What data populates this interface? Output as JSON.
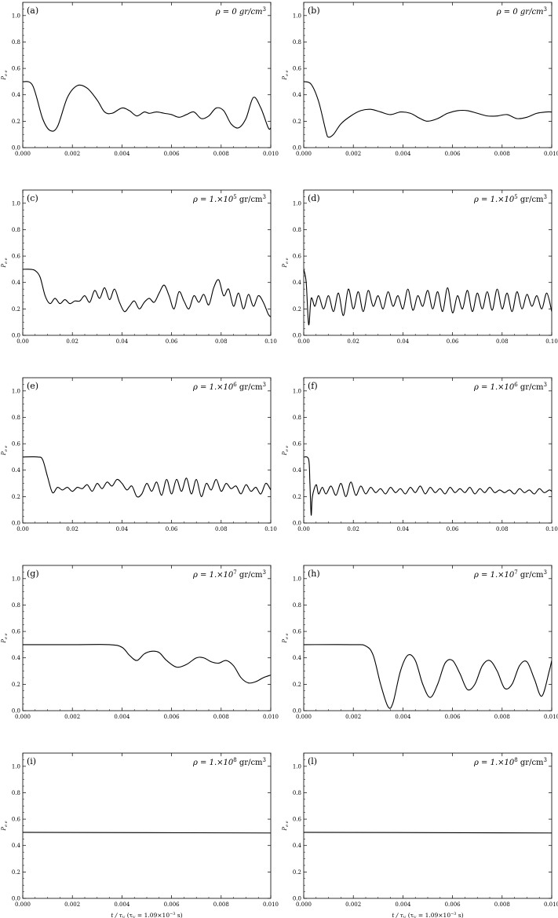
{
  "figure": {
    "x_axis_label": "t / τ",
    "x_axis_label_sub": "V",
    "x_axis_label_note": "(τ",
    "x_axis_label_note_sub": "V",
    "x_axis_label_note_val": " = 1.09×10",
    "x_axis_label_note_exp": "−3",
    "x_axis_label_note_end": " s)",
    "y_axis_label": "P",
    "y_axis_label_sub": "e e"
  },
  "chart_data": [
    {
      "id": "a",
      "type": "line",
      "label": "(a)",
      "rho_text": "ρ = 0 gr/cm",
      "rho_exp": "3",
      "xlim": [
        0,
        0.01
      ],
      "ylim": [
        0,
        1.1
      ],
      "xticks": [
        "0.000",
        "0.002",
        "0.004",
        "0.006",
        "0.008",
        "0.010"
      ],
      "yticks": [
        "0.0",
        "0.2",
        "0.4",
        "0.6",
        "0.8",
        "1.0"
      ],
      "x": [
        0,
        0.0004,
        0.0008,
        0.0011,
        0.0014,
        0.0018,
        0.0022,
        0.0026,
        0.003,
        0.0033,
        0.0036,
        0.004,
        0.0043,
        0.0046,
        0.0049,
        0.0051,
        0.0054,
        0.0057,
        0.006,
        0.0063,
        0.0066,
        0.0069,
        0.0072,
        0.0075,
        0.0078,
        0.0081,
        0.0084,
        0.0087,
        0.009,
        0.0093,
        0.0096,
        0.0099,
        0.01
      ],
      "y": [
        0.5,
        0.47,
        0.22,
        0.13,
        0.16,
        0.38,
        0.47,
        0.45,
        0.36,
        0.27,
        0.26,
        0.3,
        0.28,
        0.24,
        0.27,
        0.26,
        0.27,
        0.26,
        0.25,
        0.23,
        0.25,
        0.27,
        0.22,
        0.24,
        0.3,
        0.28,
        0.18,
        0.15,
        0.22,
        0.38,
        0.3,
        0.15,
        0.15
      ]
    },
    {
      "id": "b",
      "type": "line",
      "label": "(b)",
      "rho_text": "ρ = 0 gr/cm",
      "rho_exp": "3",
      "xlim": [
        0,
        0.01
      ],
      "ylim": [
        0,
        1.1
      ],
      "xticks": [
        "0.000",
        "0.002",
        "0.004",
        "0.006",
        "0.008",
        "0.010"
      ],
      "yticks": [
        "0.0",
        "0.2",
        "0.4",
        "0.6",
        "0.8",
        "1.0"
      ],
      "x": [
        0,
        0.0003,
        0.0006,
        0.0009,
        0.001,
        0.0012,
        0.0015,
        0.0019,
        0.0023,
        0.0027,
        0.0031,
        0.0035,
        0.0039,
        0.0043,
        0.0047,
        0.005,
        0.0054,
        0.0058,
        0.0062,
        0.0066,
        0.007,
        0.0074,
        0.0078,
        0.0082,
        0.0086,
        0.009,
        0.0094,
        0.0098,
        0.01
      ],
      "y": [
        0.5,
        0.48,
        0.35,
        0.12,
        0.08,
        0.1,
        0.18,
        0.24,
        0.28,
        0.29,
        0.27,
        0.25,
        0.27,
        0.26,
        0.22,
        0.2,
        0.22,
        0.26,
        0.28,
        0.28,
        0.26,
        0.24,
        0.24,
        0.25,
        0.22,
        0.23,
        0.26,
        0.27,
        0.27
      ]
    },
    {
      "id": "c",
      "type": "line",
      "label": "(c)",
      "rho_text": "ρ = 1.×10",
      "rho_exp2": "5",
      "rho_tail": " gr/cm",
      "rho_exp": "3",
      "xlim": [
        0,
        0.1
      ],
      "ylim": [
        0,
        1.1
      ],
      "xticks": [
        "0.00",
        "0.02",
        "0.04",
        "0.06",
        "0.08",
        "0.10"
      ],
      "yticks": [
        "0.0",
        "0.2",
        "0.4",
        "0.6",
        "0.8",
        "1.0"
      ],
      "x": [
        0,
        0.003,
        0.005,
        0.007,
        0.009,
        0.011,
        0.013,
        0.015,
        0.017,
        0.019,
        0.021,
        0.023,
        0.025,
        0.027,
        0.029,
        0.031,
        0.033,
        0.035,
        0.037,
        0.039,
        0.041,
        0.043,
        0.045,
        0.047,
        0.049,
        0.051,
        0.053,
        0.055,
        0.057,
        0.059,
        0.061,
        0.063,
        0.065,
        0.067,
        0.069,
        0.071,
        0.073,
        0.075,
        0.077,
        0.079,
        0.081,
        0.083,
        0.085,
        0.087,
        0.089,
        0.091,
        0.093,
        0.095,
        0.097,
        0.099,
        0.1
      ],
      "y": [
        0.5,
        0.5,
        0.49,
        0.44,
        0.3,
        0.24,
        0.28,
        0.24,
        0.27,
        0.24,
        0.26,
        0.26,
        0.3,
        0.25,
        0.34,
        0.28,
        0.36,
        0.27,
        0.35,
        0.25,
        0.18,
        0.22,
        0.26,
        0.2,
        0.25,
        0.28,
        0.25,
        0.32,
        0.38,
        0.3,
        0.2,
        0.33,
        0.26,
        0.2,
        0.3,
        0.25,
        0.31,
        0.23,
        0.36,
        0.42,
        0.3,
        0.35,
        0.22,
        0.32,
        0.2,
        0.31,
        0.22,
        0.3,
        0.25,
        0.16,
        0.14
      ]
    },
    {
      "id": "d",
      "type": "line",
      "label": "(d)",
      "rho_text": "ρ = 1.×10",
      "rho_exp2": "5",
      "rho_tail": " gr/cm",
      "rho_exp": "3",
      "xlim": [
        0,
        0.1
      ],
      "ylim": [
        0,
        1.1
      ],
      "xticks": [
        "0.00",
        "0.02",
        "0.04",
        "0.06",
        "0.08",
        "0.10"
      ],
      "yticks": [
        "0.0",
        "0.2",
        "0.4",
        "0.6",
        "0.8",
        "1.0"
      ],
      "x": [
        0,
        0.001,
        0.002,
        0.003,
        0.0045,
        0.006,
        0.008,
        0.01,
        0.012,
        0.014,
        0.016,
        0.018,
        0.02,
        0.022,
        0.024,
        0.026,
        0.028,
        0.03,
        0.032,
        0.034,
        0.036,
        0.038,
        0.04,
        0.042,
        0.044,
        0.046,
        0.048,
        0.05,
        0.052,
        0.054,
        0.056,
        0.058,
        0.06,
        0.062,
        0.064,
        0.066,
        0.068,
        0.07,
        0.072,
        0.074,
        0.076,
        0.078,
        0.08,
        0.082,
        0.084,
        0.086,
        0.088,
        0.09,
        0.092,
        0.094,
        0.096,
        0.098,
        0.1
      ],
      "y": [
        0.5,
        0.4,
        0.08,
        0.28,
        0.22,
        0.3,
        0.2,
        0.3,
        0.18,
        0.32,
        0.15,
        0.35,
        0.2,
        0.33,
        0.18,
        0.34,
        0.22,
        0.3,
        0.2,
        0.33,
        0.22,
        0.3,
        0.2,
        0.35,
        0.19,
        0.3,
        0.22,
        0.34,
        0.2,
        0.33,
        0.18,
        0.36,
        0.17,
        0.3,
        0.2,
        0.34,
        0.18,
        0.32,
        0.2,
        0.33,
        0.19,
        0.35,
        0.2,
        0.32,
        0.18,
        0.33,
        0.2,
        0.31,
        0.22,
        0.3,
        0.2,
        0.32,
        0.18
      ]
    },
    {
      "id": "e",
      "type": "line",
      "label": "(e)",
      "rho_text": "ρ = 1.×10",
      "rho_exp2": "6",
      "rho_tail": " gr/cm",
      "rho_exp": "3",
      "xlim": [
        0,
        0.1
      ],
      "ylim": [
        0,
        1.1
      ],
      "xticks": [
        "0.00",
        "0.02",
        "0.04",
        "0.06",
        "0.08",
        "0.10"
      ],
      "yticks": [
        "0.0",
        "0.2",
        "0.4",
        "0.6",
        "0.8",
        "1.0"
      ],
      "x": [
        0,
        0.006,
        0.008,
        0.01,
        0.012,
        0.014,
        0.016,
        0.018,
        0.02,
        0.022,
        0.024,
        0.026,
        0.028,
        0.03,
        0.032,
        0.034,
        0.036,
        0.038,
        0.04,
        0.042,
        0.044,
        0.046,
        0.048,
        0.05,
        0.052,
        0.054,
        0.056,
        0.058,
        0.06,
        0.062,
        0.064,
        0.066,
        0.068,
        0.07,
        0.072,
        0.074,
        0.076,
        0.078,
        0.08,
        0.082,
        0.084,
        0.086,
        0.088,
        0.09,
        0.092,
        0.094,
        0.096,
        0.098,
        0.1
      ],
      "y": [
        0.5,
        0.5,
        0.48,
        0.35,
        0.23,
        0.27,
        0.25,
        0.27,
        0.24,
        0.27,
        0.26,
        0.29,
        0.24,
        0.3,
        0.26,
        0.31,
        0.28,
        0.33,
        0.3,
        0.25,
        0.28,
        0.2,
        0.22,
        0.3,
        0.24,
        0.31,
        0.21,
        0.33,
        0.22,
        0.33,
        0.24,
        0.34,
        0.22,
        0.33,
        0.2,
        0.3,
        0.25,
        0.33,
        0.24,
        0.3,
        0.26,
        0.28,
        0.22,
        0.29,
        0.24,
        0.27,
        0.22,
        0.3,
        0.25
      ]
    },
    {
      "id": "f",
      "type": "line",
      "label": "(f)",
      "rho_text": "ρ = 1.×10",
      "rho_exp2": "6",
      "rho_tail": " gr/cm",
      "rho_exp": "3",
      "xlim": [
        0,
        0.1
      ],
      "ylim": [
        0,
        1.1
      ],
      "xticks": [
        "0.00",
        "0.02",
        "0.04",
        "0.06",
        "0.08",
        "0.10"
      ],
      "yticks": [
        "0.0",
        "0.2",
        "0.4",
        "0.6",
        "0.8",
        "1.0"
      ],
      "x": [
        0,
        0.002,
        0.0025,
        0.003,
        0.0035,
        0.005,
        0.006,
        0.0075,
        0.009,
        0.011,
        0.013,
        0.015,
        0.017,
        0.019,
        0.021,
        0.023,
        0.025,
        0.027,
        0.029,
        0.031,
        0.033,
        0.035,
        0.037,
        0.039,
        0.041,
        0.043,
        0.045,
        0.047,
        0.049,
        0.051,
        0.053,
        0.055,
        0.057,
        0.059,
        0.061,
        0.063,
        0.065,
        0.067,
        0.069,
        0.071,
        0.073,
        0.075,
        0.077,
        0.079,
        0.081,
        0.083,
        0.085,
        0.087,
        0.089,
        0.091,
        0.093,
        0.095,
        0.097,
        0.099,
        0.1
      ],
      "y": [
        0.5,
        0.48,
        0.3,
        0.06,
        0.2,
        0.29,
        0.22,
        0.27,
        0.22,
        0.28,
        0.21,
        0.3,
        0.2,
        0.31,
        0.21,
        0.28,
        0.22,
        0.27,
        0.23,
        0.26,
        0.22,
        0.27,
        0.23,
        0.26,
        0.22,
        0.27,
        0.23,
        0.28,
        0.22,
        0.27,
        0.23,
        0.26,
        0.22,
        0.27,
        0.23,
        0.26,
        0.23,
        0.27,
        0.22,
        0.26,
        0.23,
        0.27,
        0.23,
        0.25,
        0.23,
        0.25,
        0.22,
        0.26,
        0.23,
        0.25,
        0.22,
        0.26,
        0.23,
        0.25,
        0.24
      ]
    },
    {
      "id": "g",
      "type": "line",
      "label": "(g)",
      "rho_text": "ρ = 1.×10",
      "rho_exp2": "7",
      "rho_tail": " gr/cm",
      "rho_exp": "3",
      "xlim": [
        0,
        0.01
      ],
      "ylim": [
        0,
        1.1
      ],
      "xticks": [
        "0.000",
        "0.002",
        "0.004",
        "0.006",
        "0.008",
        "0.010"
      ],
      "yticks": [
        "0.0",
        "0.2",
        "0.4",
        "0.6",
        "0.8",
        "1.0"
      ],
      "x": [
        0,
        0.002,
        0.0035,
        0.004,
        0.0043,
        0.0046,
        0.0049,
        0.0052,
        0.0055,
        0.0058,
        0.0062,
        0.0066,
        0.007,
        0.0073,
        0.0076,
        0.0079,
        0.0082,
        0.0085,
        0.0088,
        0.0091,
        0.0094,
        0.0097,
        0.01
      ],
      "y": [
        0.5,
        0.5,
        0.5,
        0.48,
        0.42,
        0.38,
        0.43,
        0.45,
        0.44,
        0.38,
        0.33,
        0.35,
        0.4,
        0.4,
        0.37,
        0.36,
        0.38,
        0.34,
        0.25,
        0.21,
        0.22,
        0.25,
        0.27
      ]
    },
    {
      "id": "h",
      "type": "line",
      "label": "(h)",
      "rho_text": "ρ = 1.×10",
      "rho_exp2": "7",
      "rho_tail": " gr/cm",
      "rho_exp": "3",
      "xlim": [
        0,
        0.01
      ],
      "ylim": [
        0,
        1.1
      ],
      "xticks": [
        "0.000",
        "0.002",
        "0.004",
        "0.006",
        "0.008",
        "0.010"
      ],
      "yticks": [
        "0.0",
        "0.2",
        "0.4",
        "0.6",
        "0.8",
        "1.0"
      ],
      "x": [
        0,
        0.002,
        0.0025,
        0.0028,
        0.0031,
        0.0034,
        0.0036,
        0.0039,
        0.0042,
        0.0045,
        0.0048,
        0.0051,
        0.0054,
        0.0057,
        0.006,
        0.0063,
        0.0066,
        0.0069,
        0.0072,
        0.0075,
        0.0078,
        0.0081,
        0.0084,
        0.0087,
        0.009,
        0.0093,
        0.0096,
        0.0099,
        0.01
      ],
      "y": [
        0.5,
        0.5,
        0.49,
        0.42,
        0.2,
        0.03,
        0.06,
        0.3,
        0.42,
        0.38,
        0.2,
        0.1,
        0.2,
        0.36,
        0.38,
        0.28,
        0.16,
        0.2,
        0.34,
        0.38,
        0.3,
        0.17,
        0.2,
        0.34,
        0.37,
        0.24,
        0.11,
        0.3,
        0.38
      ]
    },
    {
      "id": "i",
      "type": "line",
      "label": "(i)",
      "rho_text": "ρ = 1.×10",
      "rho_exp2": "8",
      "rho_tail": " gr/cm",
      "rho_exp": "3",
      "xlim": [
        0,
        0.01
      ],
      "ylim": [
        0,
        1.1
      ],
      "xticks": [
        "0.000",
        "0.002",
        "0.004",
        "0.006",
        "0.008",
        "0.010"
      ],
      "yticks": [
        "0.0",
        "0.2",
        "0.4",
        "0.6",
        "0.8",
        "1.0"
      ],
      "x": [
        0,
        0.01
      ],
      "y": [
        0.5,
        0.495
      ]
    },
    {
      "id": "l",
      "type": "line",
      "label": "(l)",
      "rho_text": "ρ = 1.×10",
      "rho_exp2": "8",
      "rho_tail": " gr/cm",
      "rho_exp": "3",
      "xlim": [
        0,
        0.01
      ],
      "ylim": [
        0,
        1.1
      ],
      "xticks": [
        "0.000",
        "0.002",
        "0.004",
        "0.006",
        "0.008",
        "0.010"
      ],
      "yticks": [
        "0.0",
        "0.2",
        "0.4",
        "0.6",
        "0.8",
        "1.0"
      ],
      "x": [
        0,
        0.01
      ],
      "y": [
        0.5,
        0.495
      ]
    }
  ]
}
